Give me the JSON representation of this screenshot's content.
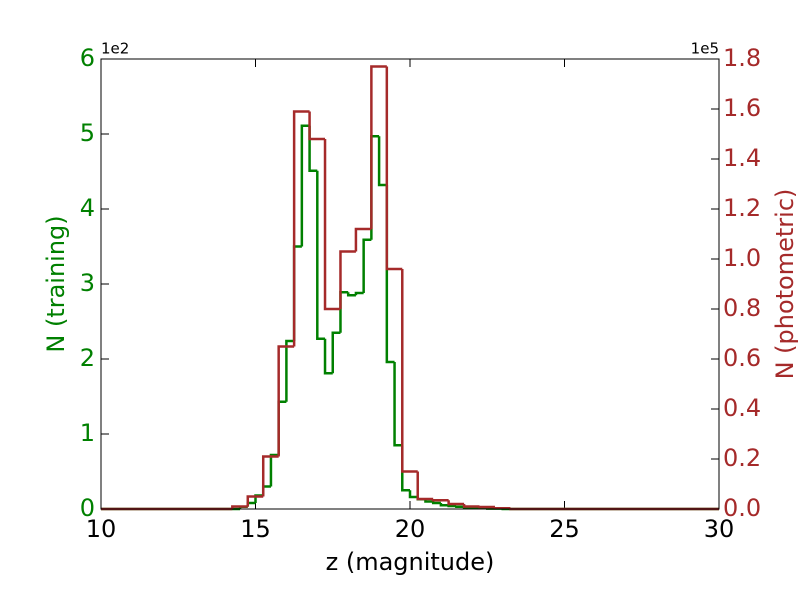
{
  "chart_data": {
    "type": "histogram",
    "x_label": "z (magnitude)",
    "y_label": "N (training)",
    "y2_label": "N (photometric)",
    "y_offset_label": "1e2",
    "y2_offset_label": "1e5",
    "xlim": [
      10,
      30
    ],
    "xticks": [
      10,
      15,
      20,
      25,
      30
    ],
    "ylim": [
      0,
      6
    ],
    "yticks": [
      0,
      1,
      2,
      3,
      4,
      5,
      6
    ],
    "y2lim": [
      0,
      1.8
    ],
    "y2ticks": [
      {
        "value": 0,
        "label": "0.0"
      },
      {
        "value": 0.2,
        "label": "0.2"
      },
      {
        "value": 0.4,
        "label": "0.4"
      },
      {
        "value": 0.6,
        "label": "0.6"
      },
      {
        "value": 0.8,
        "label": "0.8"
      },
      {
        "value": 1,
        "label": "1.0"
      },
      {
        "value": 1.2,
        "label": "1.2"
      },
      {
        "value": 1.4,
        "label": "1.4"
      },
      {
        "value": 1.6,
        "label": "1.6"
      },
      {
        "value": 1.8,
        "label": "1.8"
      }
    ],
    "y_color": "#008000",
    "y2_color": "#a52a2a",
    "series": [
      {
        "color": "#008000",
        "bins": [
          10,
          14.5,
          14.75,
          15,
          15.25,
          15.5,
          15.75,
          16,
          16.25,
          16.5,
          16.75,
          17,
          17.25,
          17.5,
          17.75,
          18,
          18.25,
          18.5,
          18.75,
          19,
          19.25,
          19.5,
          19.75,
          20,
          20.25,
          20.5,
          20.75,
          21,
          21.25,
          21.5,
          21.75,
          22,
          22.5,
          23,
          30
        ],
        "values": [
          0,
          0.03,
          0.08,
          0.18,
          0.3,
          0.72,
          1.43,
          2.24,
          3.5,
          5.11,
          4.51,
          2.27,
          1.81,
          2.35,
          2.89,
          2.85,
          2.88,
          3.59,
          4.97,
          4.32,
          1.96,
          0.85,
          0.25,
          0.16,
          0.13,
          0.1,
          0.08,
          0.05,
          0.04,
          0.03,
          0.02,
          0.01,
          0.005,
          0
        ]
      },
      {
        "color": "#a52a2a",
        "axis": "y2",
        "bins": [
          10,
          14.25,
          14.75,
          15.25,
          15.75,
          16.25,
          16.75,
          17.25,
          17.75,
          18.25,
          18.75,
          19.25,
          19.75,
          20.25,
          20.75,
          21.25,
          21.75,
          22.25,
          22.75,
          23.25,
          30
        ],
        "values": [
          0,
          0.01,
          0.05,
          0.21,
          0.65,
          1.59,
          1.48,
          0.8,
          1.03,
          1.12,
          1.77,
          0.96,
          0.15,
          0.04,
          0.035,
          0.02,
          0.01,
          0.008,
          0.003,
          0
        ]
      }
    ]
  }
}
